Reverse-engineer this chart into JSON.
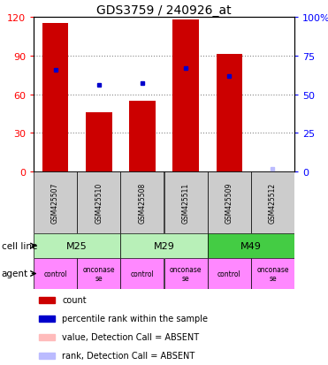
{
  "title": "GDS3759 / 240926_at",
  "samples": [
    "GSM425507",
    "GSM425510",
    "GSM425508",
    "GSM425511",
    "GSM425509",
    "GSM425512"
  ],
  "counts": [
    115,
    46,
    55,
    118,
    91,
    0
  ],
  "percentile_ranks": [
    66,
    56,
    57,
    67,
    62,
    2
  ],
  "absent_flags": [
    false,
    false,
    false,
    false,
    false,
    true
  ],
  "cell_lines": [
    {
      "label": "M25",
      "cols": [
        0,
        1
      ],
      "color": "#b8f0b8"
    },
    {
      "label": "M29",
      "cols": [
        2,
        3
      ],
      "color": "#b8f0b8"
    },
    {
      "label": "M49",
      "cols": [
        4,
        5
      ],
      "color": "#44cc44"
    }
  ],
  "agents": [
    "control",
    "onconase\nse",
    "control",
    "onconase\nse",
    "control",
    "onconase\nse"
  ],
  "bar_color": "#cc0000",
  "rank_color": "#0000cc",
  "ylim_left": [
    0,
    120
  ],
  "ylim_right": [
    0,
    100
  ],
  "yticks_left": [
    0,
    30,
    60,
    90,
    120
  ],
  "yticks_right": [
    0,
    25,
    50,
    75,
    100
  ],
  "ytick_labels_right": [
    "0",
    "25",
    "50",
    "75",
    "100%"
  ],
  "grid_color": "#888888",
  "absent_bar_color": "#ffbbbb",
  "absent_rank_color": "#bbbbff",
  "agent_bg": "#ff88ff",
  "sample_bg": "#cccccc",
  "legend_items": [
    {
      "color": "#cc0000",
      "label": "count",
      "square": true
    },
    {
      "color": "#0000cc",
      "label": "percentile rank within the sample",
      "square": true
    },
    {
      "color": "#ffbbbb",
      "label": "value, Detection Call = ABSENT",
      "square": true
    },
    {
      "color": "#bbbbff",
      "label": "rank, Detection Call = ABSENT",
      "square": true
    }
  ]
}
